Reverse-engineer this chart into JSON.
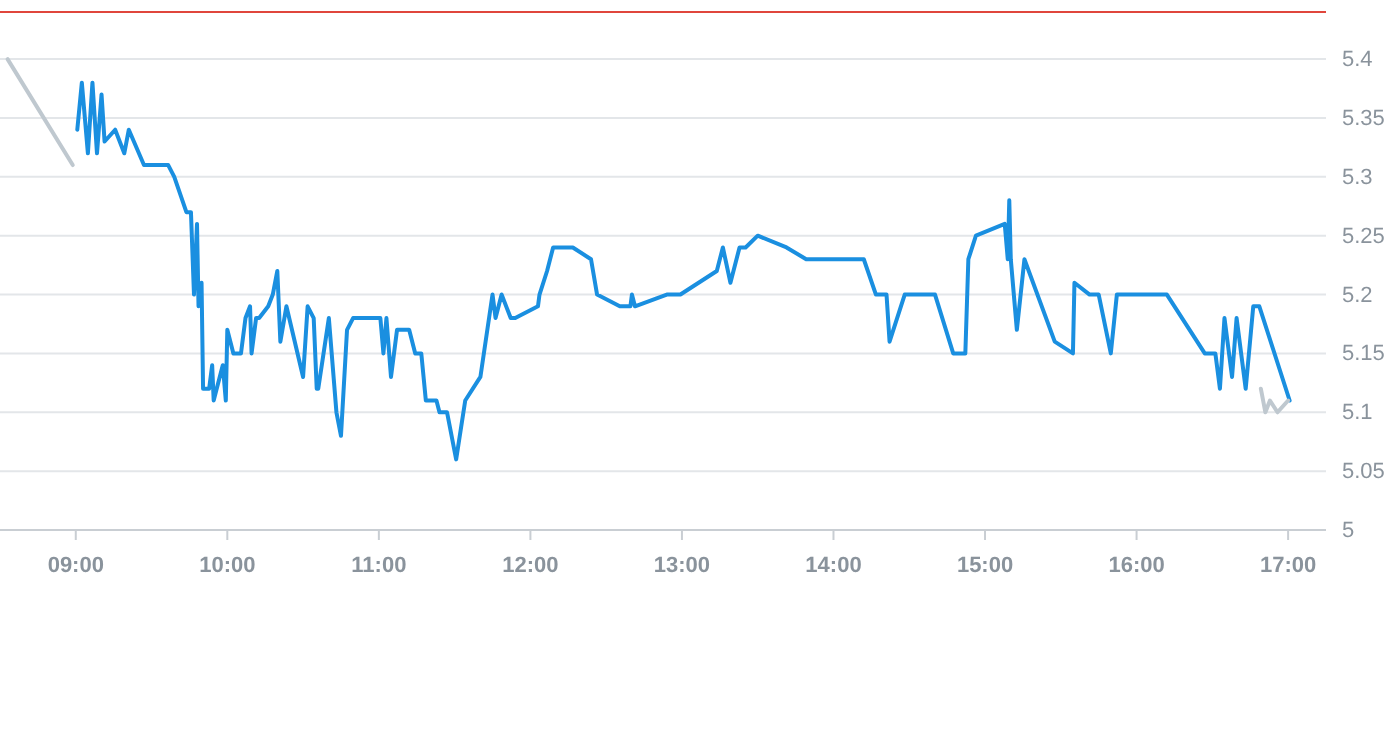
{
  "chart_data": {
    "type": "line",
    "xlim": [
      8.5,
      17.25
    ],
    "ylim": [
      5,
      5.44
    ],
    "xticks": [
      {
        "value": 9,
        "label": "09:00"
      },
      {
        "value": 10,
        "label": "10:00"
      },
      {
        "value": 11,
        "label": "11:00"
      },
      {
        "value": 12,
        "label": "12:00"
      },
      {
        "value": 13,
        "label": "13:00"
      },
      {
        "value": 14,
        "label": "14:00"
      },
      {
        "value": 15,
        "label": "15:00"
      },
      {
        "value": 16,
        "label": "16:00"
      },
      {
        "value": 17,
        "label": "17:00"
      }
    ],
    "yticks": [
      5,
      5.05,
      5.1,
      5.15,
      5.2,
      5.25,
      5.3,
      5.35,
      5.4
    ],
    "grid": "y",
    "marker": "none",
    "line_style": "solid",
    "ref_lines": [
      {
        "axis": "y",
        "value": 5.44,
        "color": "#e0463c"
      }
    ],
    "series": [
      {
        "color": "#bfc8cf",
        "x": [
          8.55,
          8.98
        ],
        "values": [
          5.4,
          5.31
        ]
      },
      {
        "color": "#1a8fe0",
        "x": [
          9.01,
          9.04,
          9.08,
          9.11,
          9.14,
          9.17,
          9.19,
          9.26,
          9.32,
          9.35,
          9.45,
          9.61,
          9.65,
          9.73,
          9.76,
          9.78,
          9.8,
          9.81,
          9.83,
          9.84,
          9.88,
          9.9,
          9.91,
          9.97,
          9.99,
          10,
          10.04,
          10.09,
          10.12,
          10.15,
          10.16,
          10.19,
          10.21,
          10.27,
          10.3,
          10.33,
          10.35,
          10.39,
          10.5,
          10.53,
          10.57,
          10.59,
          10.6,
          10.67,
          10.72,
          10.75,
          10.79,
          10.83,
          11.01,
          11.03,
          11.05,
          11.08,
          11.12,
          11.2,
          11.24,
          11.28,
          11.31,
          11.38,
          11.4,
          11.45,
          11.51,
          11.57,
          11.67,
          11.75,
          11.77,
          11.81,
          11.87,
          11.9,
          12.05,
          12.06,
          12.11,
          12.15,
          12.28,
          12.4,
          12.44,
          12.59,
          12.66,
          12.67,
          12.69,
          12.9,
          12.99,
          13.23,
          13.27,
          13.32,
          13.38,
          13.42,
          13.5,
          13.69,
          13.82,
          14.2,
          14.28,
          14.35,
          14.37,
          14.47,
          14.67,
          14.79,
          14.87,
          14.89,
          14.94,
          15.13,
          15.15,
          15.16,
          15.17,
          15.21,
          15.26,
          15.46,
          15.58,
          15.59,
          15.69,
          15.75,
          15.83,
          15.87,
          16.2,
          16.45,
          16.52,
          16.55,
          16.58,
          16.63,
          16.66,
          16.72,
          16.77,
          16.81,
          17.01
        ],
        "values": [
          5.34,
          5.38,
          5.32,
          5.38,
          5.32,
          5.37,
          5.33,
          5.34,
          5.32,
          5.34,
          5.31,
          5.31,
          5.3,
          5.27,
          5.27,
          5.2,
          5.26,
          5.19,
          5.21,
          5.12,
          5.12,
          5.14,
          5.11,
          5.14,
          5.11,
          5.17,
          5.15,
          5.15,
          5.18,
          5.19,
          5.15,
          5.18,
          5.18,
          5.19,
          5.2,
          5.22,
          5.16,
          5.19,
          5.13,
          5.19,
          5.18,
          5.12,
          5.12,
          5.18,
          5.1,
          5.08,
          5.17,
          5.18,
          5.18,
          5.15,
          5.18,
          5.13,
          5.17,
          5.17,
          5.15,
          5.15,
          5.11,
          5.11,
          5.1,
          5.1,
          5.06,
          5.11,
          5.13,
          5.2,
          5.18,
          5.2,
          5.18,
          5.18,
          5.19,
          5.2,
          5.22,
          5.24,
          5.24,
          5.23,
          5.2,
          5.19,
          5.19,
          5.2,
          5.19,
          5.2,
          5.2,
          5.22,
          5.24,
          5.21,
          5.24,
          5.24,
          5.25,
          5.24,
          5.23,
          5.23,
          5.2,
          5.2,
          5.16,
          5.2,
          5.2,
          5.15,
          5.15,
          5.23,
          5.25,
          5.26,
          5.23,
          5.28,
          5.23,
          5.17,
          5.23,
          5.16,
          5.15,
          5.21,
          5.2,
          5.2,
          5.15,
          5.2,
          5.2,
          5.15,
          5.15,
          5.12,
          5.18,
          5.13,
          5.18,
          5.12,
          5.19,
          5.19,
          5.11
        ]
      },
      {
        "color": "#bfc8cf",
        "x": [
          16.82,
          16.85,
          16.88,
          16.93,
          17
        ],
        "values": [
          5.12,
          5.1,
          5.11,
          5.1,
          5.11
        ]
      }
    ]
  }
}
